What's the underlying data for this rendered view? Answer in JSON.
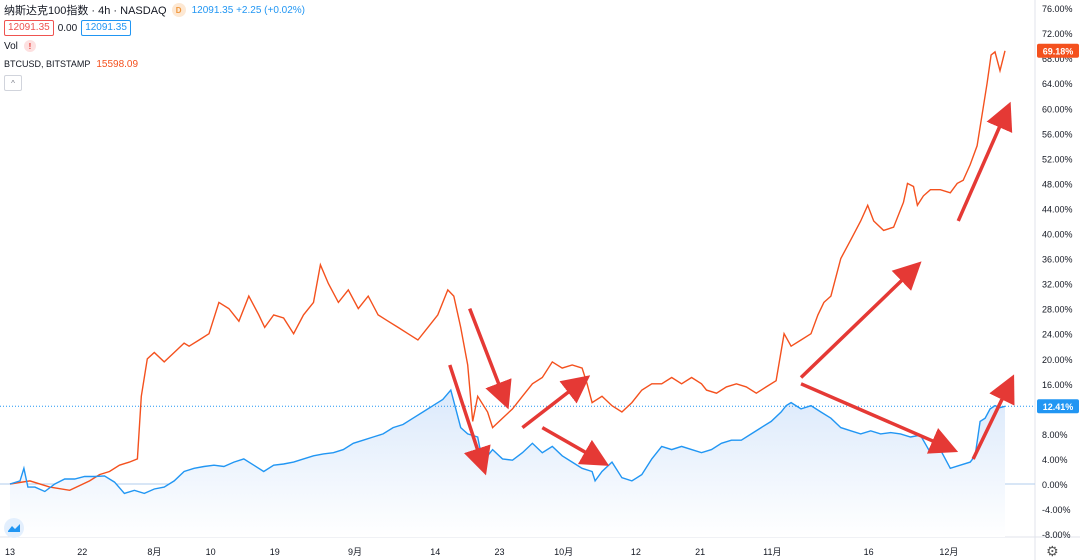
{
  "legend": {
    "symbol_title": "纳斯达克100指数 · 4h · NASDAQ",
    "d_badge": "D",
    "price_info": "12091.35 +2.25 (+0.02%)",
    "sell_price": "12091.35",
    "spread": "0.00",
    "buy_price": "12091.35",
    "vol_label": "Vol",
    "vol_warning_icon": "!",
    "btc_symbol": "BTCUSD, BITSTAMP",
    "btc_value": "15598.09",
    "collapse_icon": "^"
  },
  "colors": {
    "btc_line": "#f4511e",
    "ndx_line": "#2196f3",
    "ndx_fill": "#e8f1fc",
    "arrow": "#e53935",
    "axis_text": "#131722",
    "grid_dotted": "#2196f3"
  },
  "chart_data": {
    "type": "line",
    "title": "纳斯达克100指数 · 4h · NASDAQ",
    "y_unit": "%",
    "ylim": [
      -10,
      77
    ],
    "y_ticks": [
      "76.00%",
      "72.00%",
      "68.00%",
      "64.00%",
      "60.00%",
      "56.00%",
      "52.00%",
      "48.00%",
      "44.00%",
      "40.00%",
      "36.00%",
      "32.00%",
      "28.00%",
      "24.00%",
      "20.00%",
      "16.00%",
      "12.00%",
      "8.00%",
      "4.00%",
      "0.00%",
      "-4.00%",
      "-8.00%"
    ],
    "y_tick_values": [
      76,
      72,
      68,
      64,
      60,
      56,
      52,
      48,
      44,
      40,
      36,
      32,
      28,
      24,
      20,
      16,
      12,
      8,
      4,
      0,
      -4,
      -8
    ],
    "x_ticks": [
      "13",
      "22",
      "8月",
      "10",
      "19",
      "9月",
      "14",
      "23",
      "10月",
      "12",
      "21",
      "11月",
      "16",
      "12月"
    ],
    "x_tick_index": [
      0,
      9,
      18,
      25,
      33,
      43,
      53,
      61,
      69,
      78,
      86,
      95,
      107,
      117
    ],
    "x_max_index": 124,
    "series": [
      {
        "name": "BTCUSD, BITSTAMP",
        "color": "#f4511e",
        "last_label": "69.18%",
        "values": [
          [
            0,
            0
          ],
          [
            2,
            0.5
          ],
          [
            4,
            -0.5
          ],
          [
            6,
            -1
          ],
          [
            8,
            0.5
          ],
          [
            9,
            1.5
          ],
          [
            10,
            2
          ],
          [
            11,
            3
          ],
          [
            12,
            3.5
          ],
          [
            12.8,
            4
          ],
          [
            13.2,
            14
          ],
          [
            13.8,
            20
          ],
          [
            14.5,
            21
          ],
          [
            15.5,
            19.5
          ],
          [
            16.5,
            21
          ],
          [
            17.5,
            22.5
          ],
          [
            18,
            22
          ],
          [
            19,
            23
          ],
          [
            20,
            24
          ],
          [
            21,
            29
          ],
          [
            22,
            28
          ],
          [
            23,
            26
          ],
          [
            24,
            30
          ],
          [
            25,
            27
          ],
          [
            25.6,
            25
          ],
          [
            26.5,
            27
          ],
          [
            27.5,
            26.5
          ],
          [
            28.5,
            24
          ],
          [
            29.5,
            27
          ],
          [
            30.5,
            29
          ],
          [
            31.2,
            35
          ],
          [
            32,
            32
          ],
          [
            33,
            29
          ],
          [
            34,
            31
          ],
          [
            35,
            28
          ],
          [
            36,
            30
          ],
          [
            37,
            27
          ],
          [
            38,
            26
          ],
          [
            39,
            25
          ],
          [
            40,
            24
          ],
          [
            41,
            23
          ],
          [
            42,
            25
          ],
          [
            43,
            27
          ],
          [
            44,
            31
          ],
          [
            44.6,
            30
          ],
          [
            45.3,
            25
          ],
          [
            46,
            19
          ],
          [
            46.5,
            10
          ],
          [
            47,
            14
          ],
          [
            48,
            11.5
          ],
          [
            48.5,
            9
          ],
          [
            49.5,
            10.5
          ],
          [
            50.5,
            12
          ],
          [
            51.5,
            14
          ],
          [
            52.5,
            16
          ],
          [
            53.5,
            17
          ],
          [
            54.5,
            19.5
          ],
          [
            55.5,
            18.5
          ],
          [
            56.5,
            19
          ],
          [
            57.5,
            18.5
          ],
          [
            58,
            16
          ],
          [
            58.5,
            13
          ],
          [
            59.5,
            14
          ],
          [
            60.5,
            12.5
          ],
          [
            61.5,
            11.5
          ],
          [
            62.5,
            13
          ],
          [
            63.5,
            15
          ],
          [
            64.5,
            16
          ],
          [
            65.5,
            16
          ],
          [
            66.5,
            17
          ],
          [
            67.5,
            16
          ],
          [
            68.5,
            17
          ],
          [
            69.5,
            16
          ],
          [
            70,
            15
          ],
          [
            71,
            14.5
          ],
          [
            72,
            15.5
          ],
          [
            73,
            16
          ],
          [
            74,
            15.5
          ],
          [
            75,
            14.5
          ],
          [
            76,
            15.5
          ],
          [
            77,
            16.5
          ],
          [
            77.8,
            24
          ],
          [
            78.5,
            22
          ],
          [
            79.5,
            23
          ],
          [
            80.5,
            24
          ],
          [
            81.2,
            27
          ],
          [
            81.8,
            29
          ],
          [
            82.5,
            30
          ],
          [
            83.5,
            36
          ],
          [
            84.5,
            39
          ],
          [
            85.5,
            42
          ],
          [
            86.2,
            44.5
          ],
          [
            86.8,
            42
          ],
          [
            87.8,
            40.5
          ],
          [
            88.8,
            41
          ],
          [
            89.8,
            45
          ],
          [
            90.2,
            48
          ],
          [
            90.8,
            47.5
          ],
          [
            91.2,
            44.5
          ],
          [
            91.8,
            46
          ],
          [
            92.5,
            47
          ],
          [
            93.5,
            47
          ],
          [
            94.5,
            46.5
          ],
          [
            95.2,
            48
          ],
          [
            95.8,
            48.5
          ],
          [
            96.5,
            51
          ],
          [
            97.2,
            54
          ],
          [
            97.8,
            60
          ],
          [
            98.2,
            64
          ],
          [
            98.6,
            68.5
          ],
          [
            99,
            69
          ],
          [
            99.5,
            66
          ],
          [
            100,
            69.18
          ]
        ]
      },
      {
        "name": "纳斯达克100指数",
        "color": "#2196f3",
        "last_label": "12.41%",
        "values": [
          [
            0,
            0
          ],
          [
            1,
            0.5
          ],
          [
            1.4,
            2.5
          ],
          [
            1.8,
            -0.5
          ],
          [
            2.5,
            -0.5
          ],
          [
            3.5,
            -1.2
          ],
          [
            4.5,
            0
          ],
          [
            5.5,
            0.8
          ],
          [
            6.5,
            0.8
          ],
          [
            7.5,
            1.2
          ],
          [
            8.5,
            1.2
          ],
          [
            9.5,
            1.3
          ],
          [
            10.5,
            0.3
          ],
          [
            11.5,
            -1.5
          ],
          [
            12.5,
            -1
          ],
          [
            13.5,
            -1.5
          ],
          [
            14.5,
            -0.8
          ],
          [
            15.5,
            -0.5
          ],
          [
            16.5,
            0.5
          ],
          [
            17.5,
            2
          ],
          [
            18.5,
            2.5
          ],
          [
            19.5,
            2.8
          ],
          [
            20.5,
            3
          ],
          [
            21.5,
            2.8
          ],
          [
            22.5,
            3.5
          ],
          [
            23.5,
            4
          ],
          [
            24.5,
            3
          ],
          [
            25.5,
            2
          ],
          [
            26.5,
            3
          ],
          [
            27.5,
            3.2
          ],
          [
            28.5,
            3.5
          ],
          [
            29.5,
            4
          ],
          [
            30.5,
            4.5
          ],
          [
            31.5,
            4.8
          ],
          [
            32.5,
            5
          ],
          [
            33.5,
            5.5
          ],
          [
            34.5,
            6.5
          ],
          [
            35.5,
            7
          ],
          [
            36.5,
            7.5
          ],
          [
            37.5,
            8
          ],
          [
            38.5,
            9
          ],
          [
            39.5,
            9.5
          ],
          [
            40.5,
            10.5
          ],
          [
            41.5,
            11.5
          ],
          [
            42.5,
            12.5
          ],
          [
            43.5,
            13.5
          ],
          [
            44.3,
            15
          ],
          [
            44.8,
            12
          ],
          [
            45.3,
            9
          ],
          [
            46,
            8
          ],
          [
            47,
            7.5
          ],
          [
            47.5,
            3.5
          ],
          [
            48.5,
            5.5
          ],
          [
            49.5,
            4
          ],
          [
            50.5,
            3.8
          ],
          [
            51.5,
            5
          ],
          [
            52.5,
            6.5
          ],
          [
            53.5,
            5
          ],
          [
            54.5,
            6
          ],
          [
            55.5,
            4.5
          ],
          [
            56.5,
            3.5
          ],
          [
            57.5,
            2.5
          ],
          [
            58.5,
            2
          ],
          [
            58.8,
            0.5
          ],
          [
            59.5,
            2
          ],
          [
            60.5,
            3.5
          ],
          [
            61.5,
            1
          ],
          [
            62.5,
            0.5
          ],
          [
            63.5,
            1.5
          ],
          [
            64.5,
            4
          ],
          [
            65.5,
            6
          ],
          [
            66.5,
            5.5
          ],
          [
            67.5,
            6
          ],
          [
            68.5,
            5.5
          ],
          [
            69.5,
            5
          ],
          [
            70.5,
            5.5
          ],
          [
            71.5,
            6.5
          ],
          [
            72.5,
            7
          ],
          [
            73.5,
            7
          ],
          [
            74.5,
            8
          ],
          [
            75.5,
            9
          ],
          [
            76.5,
            10
          ],
          [
            77.5,
            11.5
          ],
          [
            78,
            12.5
          ],
          [
            78.5,
            13
          ],
          [
            79.5,
            12
          ],
          [
            80.5,
            12.5
          ],
          [
            81.5,
            11.5
          ],
          [
            82.5,
            10.5
          ],
          [
            83.5,
            9
          ],
          [
            84.5,
            8.5
          ],
          [
            85.5,
            8
          ],
          [
            86.5,
            8.5
          ],
          [
            87.5,
            8
          ],
          [
            88.5,
            8.2
          ],
          [
            89.5,
            8
          ],
          [
            90.5,
            7.5
          ],
          [
            91.5,
            7.8
          ],
          [
            92.5,
            5
          ],
          [
            93.5,
            5.5
          ],
          [
            94.5,
            2.5
          ],
          [
            95.5,
            3
          ],
          [
            96.5,
            3.5
          ],
          [
            97,
            4.5
          ],
          [
            97.5,
            10
          ],
          [
            98,
            10.5
          ],
          [
            98.5,
            12
          ],
          [
            99,
            12.5
          ],
          [
            99.5,
            12.2
          ],
          [
            100,
            12.41
          ]
        ]
      }
    ],
    "arrows": [
      [
        46.2,
        28,
        49.6,
        14
      ],
      [
        44.2,
        19,
        47.4,
        3.5
      ],
      [
        51.5,
        9,
        57.2,
        16
      ],
      [
        53.5,
        9,
        59.0,
        4
      ],
      [
        79.5,
        17,
        90.6,
        34
      ],
      [
        79.5,
        16,
        94.0,
        6
      ],
      [
        95.3,
        42,
        100,
        59
      ],
      [
        96.8,
        4,
        100.3,
        15.5
      ]
    ],
    "grid": false,
    "legend_position": "top-left"
  }
}
